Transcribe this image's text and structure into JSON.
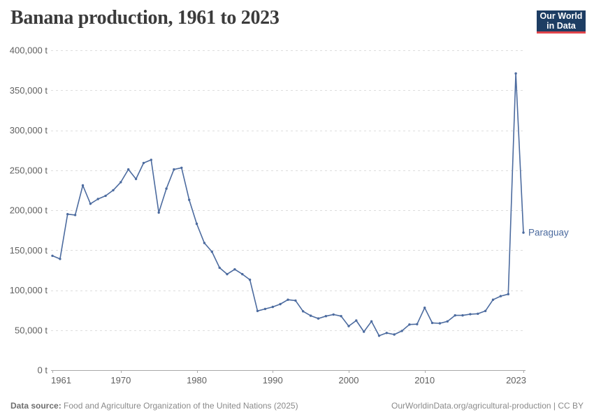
{
  "header": {
    "title": "Banana production, 1961 to 2023",
    "logo": {
      "line1": "Our World",
      "line2": "in Data"
    }
  },
  "footer": {
    "source_label": "Data source:",
    "source_text": " Food and Agriculture Organization of the United Nations (2025)",
    "credit": "OurWorldinData.org/agricultural-production | CC BY"
  },
  "colors": {
    "series": "#4C6B9F",
    "grid": "#dddddd",
    "axis": "#a9a9a9",
    "tick_label": "#606060",
    "title": "#3b3b3b",
    "footer": "#8a8a8a",
    "logo_bg": "#1d3d63",
    "logo_accent": "#e0444a"
  },
  "chart_data": {
    "type": "line",
    "title": "Banana production, 1961 to 2023",
    "xlabel": "",
    "ylabel": "",
    "unit": "t",
    "grid": true,
    "legend_position": "end-of-line-label",
    "xlim": [
      1961,
      2023
    ],
    "ylim": [
      0,
      400000
    ],
    "x_ticks": [
      1961,
      1970,
      1980,
      1990,
      2000,
      2010,
      2023
    ],
    "x_tick_labels": [
      "1961",
      "1970",
      "1980",
      "1990",
      "2000",
      "2010",
      "2023"
    ],
    "y_ticks": [
      0,
      50000,
      100000,
      150000,
      200000,
      250000,
      300000,
      350000,
      400000
    ],
    "y_tick_labels": [
      "0 t",
      "50,000 t",
      "100,000 t",
      "150,000 t",
      "200,000 t",
      "250,000 t",
      "300,000 t",
      "350,000 t",
      "400,000 t"
    ],
    "series": [
      {
        "name": "Paraguay",
        "color": "#4C6B9F",
        "x": [
          1961,
          1962,
          1963,
          1964,
          1965,
          1966,
          1967,
          1968,
          1969,
          1970,
          1971,
          1972,
          1973,
          1974,
          1975,
          1976,
          1977,
          1978,
          1979,
          1980,
          1981,
          1982,
          1983,
          1984,
          1985,
          1986,
          1987,
          1988,
          1989,
          1990,
          1991,
          1992,
          1993,
          1994,
          1995,
          1996,
          1997,
          1998,
          1999,
          2000,
          2001,
          2002,
          2003,
          2004,
          2005,
          2006,
          2007,
          2008,
          2009,
          2010,
          2011,
          2012,
          2013,
          2014,
          2015,
          2016,
          2017,
          2018,
          2019,
          2020,
          2021,
          2022,
          2023
        ],
        "values": [
          143000,
          139000,
          195000,
          194000,
          231000,
          208000,
          214000,
          218000,
          225000,
          235000,
          251000,
          239000,
          259000,
          263000,
          197000,
          227000,
          251000,
          253000,
          213000,
          183000,
          159000,
          148000,
          128000,
          120000,
          126000,
          120000,
          113000,
          74000,
          76500,
          79000,
          82500,
          88000,
          87000,
          73500,
          68000,
          64500,
          67500,
          69500,
          67500,
          55000,
          62000,
          48000,
          61000,
          43000,
          46500,
          44500,
          49000,
          57000,
          57500,
          78000,
          59000,
          58500,
          61000,
          68500,
          68500,
          70000,
          70500,
          74000,
          88000,
          92500,
          95000,
          371000,
          172000
        ]
      }
    ]
  }
}
